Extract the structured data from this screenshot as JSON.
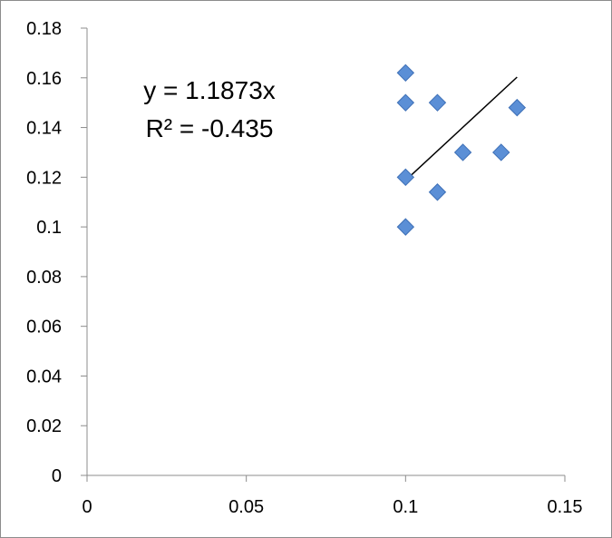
{
  "chart_data": {
    "type": "scatter",
    "title": "",
    "xlabel": "",
    "ylabel": "",
    "xlim": [
      0,
      0.15
    ],
    "ylim": [
      0,
      0.18
    ],
    "x_ticks": [
      "0",
      "0.05",
      "0.1",
      "0.15"
    ],
    "y_ticks": [
      "0",
      "0.02",
      "0.04",
      "0.06",
      "0.08",
      "0.1",
      "0.12",
      "0.14",
      "0.16",
      "0.18"
    ],
    "grid": false,
    "legend": "none",
    "marker": "diamond",
    "colors": {
      "marker_fill": "#5b8fd6",
      "marker_stroke": "#3d6fb6",
      "trendline": "#000000",
      "axis": "#8c8c8c"
    },
    "series": [
      {
        "x": [
          0.1,
          0.1,
          0.1,
          0.1,
          0.11,
          0.11,
          0.118,
          0.13,
          0.135
        ],
        "y": [
          0.162,
          0.15,
          0.12,
          0.1,
          0.15,
          0.114,
          0.13,
          0.13,
          0.148
        ]
      }
    ],
    "trendline": {
      "type": "linear-through-origin",
      "slope": 1.1873,
      "x_range": [
        0.1,
        0.135
      ]
    },
    "annotations": {
      "equation": "y = 1.1873x",
      "r_squared": "R² = -0.435"
    }
  }
}
